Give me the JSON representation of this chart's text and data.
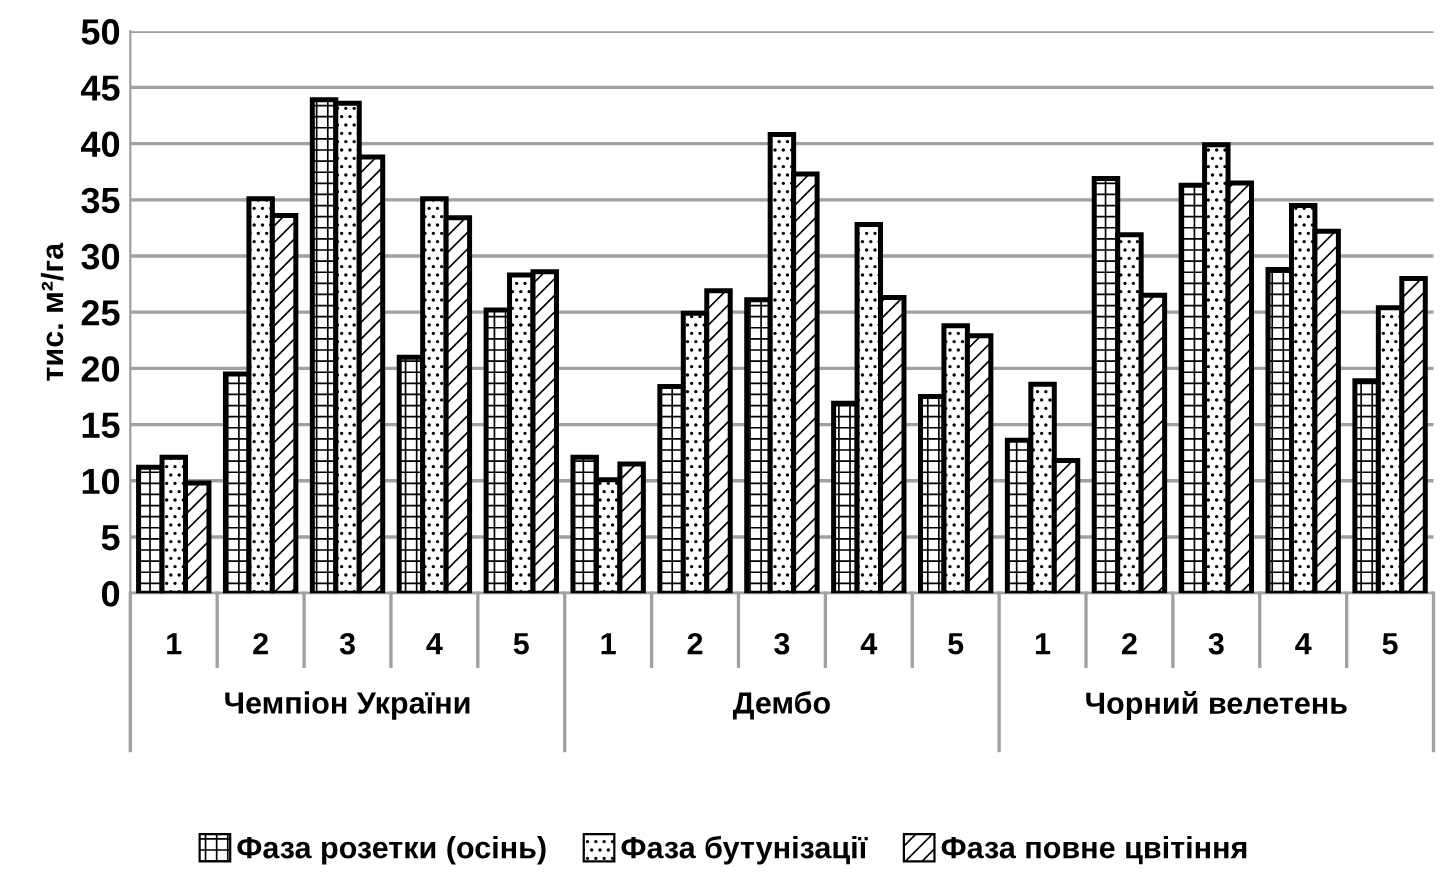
{
  "chart_data": {
    "type": "bar",
    "ylabel": "тис. м²/га",
    "categories": [
      "1",
      "2",
      "3",
      "4",
      "5",
      "1",
      "2",
      "3",
      "4",
      "5",
      "1",
      "2",
      "3",
      "4",
      "5"
    ],
    "annotations": [
      "Чемпіон України",
      "Дембо",
      "Чорний велетень"
    ],
    "series": [
      {
        "name": "Фаза розетки (осінь)",
        "color": "#000000",
        "values": [
          11.2,
          19.5,
          43.9,
          21,
          25.2,
          12.1,
          18.4,
          26.1,
          16.9,
          17.5,
          13.6,
          36.9,
          36.3,
          28.8,
          18.9
        ]
      },
      {
        "name": "Фаза бутунізації",
        "color": "#000000",
        "values": [
          12.1,
          35.1,
          43.6,
          35.1,
          28.3,
          10.1,
          24.9,
          40.8,
          32.8,
          23.8,
          18.6,
          31.9,
          39.9,
          34.5,
          25.4
        ]
      },
      {
        "name": "Фаза повне цвітіння",
        "color": "#000000",
        "values": [
          9.8,
          33.6,
          38.8,
          33.4,
          28.6,
          11.5,
          26.9,
          37.3,
          26.3,
          22.9,
          11.8,
          26.5,
          36.5,
          32.2,
          28.0
        ]
      }
    ],
    "ylim": [
      0,
      50
    ],
    "yticks": [
      0,
      5,
      10,
      15,
      20,
      25,
      30,
      35,
      40,
      45,
      50
    ],
    "grid": "y",
    "legend": "bottom"
  }
}
